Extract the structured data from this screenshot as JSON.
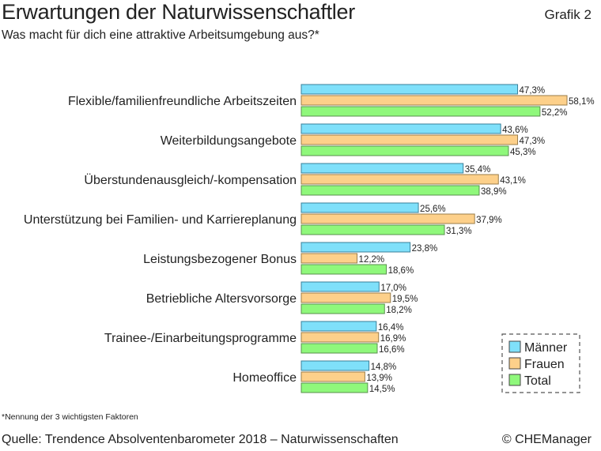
{
  "header": {
    "title": "Erwartungen der Naturwissenschaftler",
    "grafik": "Grafik 2",
    "subtitle": "Was macht für dich eine attraktive Arbeitsumgebung aus?*"
  },
  "footer": {
    "footnote": "*Nennung der 3 wichtigsten Faktoren",
    "source": "Quelle: Trendence Absolventenbarometer 2018 – Naturwissenschaften",
    "copyright": "© CHEManager"
  },
  "chart_data": {
    "type": "bar",
    "orientation": "horizontal",
    "categories": [
      "Flexible/familienfreundliche Arbeitszeiten",
      "Weiterbildungsangebote",
      "Überstundenausgleich/-kompensation",
      "Unterstützung bei Familien- und Karriereplanung",
      "Leistungsbezogener Bonus",
      "Betriebliche Altersvorsorge",
      "Trainee-/Einarbeitungsprogramme",
      "Homeoffice"
    ],
    "series": [
      {
        "name": "Männer",
        "color": "#7fe0fa",
        "values": [
          47.3,
          43.6,
          35.4,
          25.6,
          23.8,
          17.0,
          16.4,
          14.8
        ]
      },
      {
        "name": "Frauen",
        "color": "#fdd08a",
        "values": [
          58.1,
          47.3,
          43.1,
          37.9,
          12.2,
          19.5,
          16.9,
          13.9
        ]
      },
      {
        "name": "Total",
        "color": "#8ff87b",
        "values": [
          52.2,
          45.3,
          38.9,
          31.3,
          18.6,
          18.2,
          16.6,
          14.5
        ]
      }
    ],
    "unit": "%",
    "grid": false,
    "legend_position": "bottom-right"
  }
}
